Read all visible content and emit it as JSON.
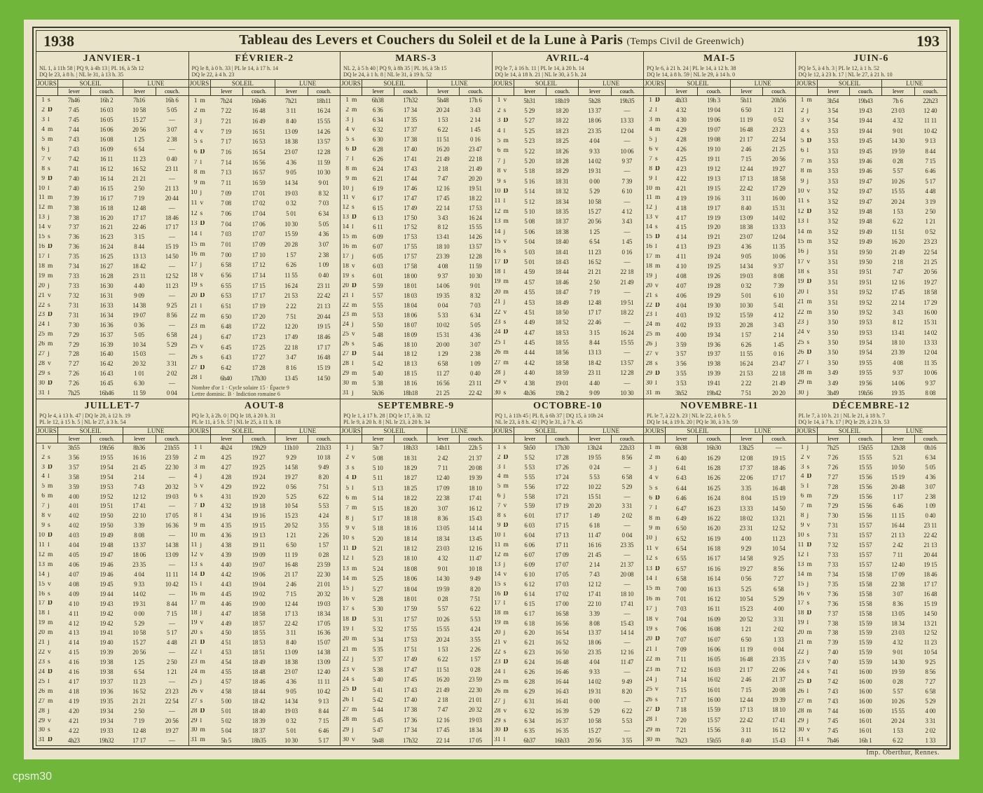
{
  "meta": {
    "year_left": "1938",
    "year_right": "193",
    "title_main": "Tableau des Levers et Couchers du Soleil et de la Lune à Paris",
    "title_sub": "(Temps Civil de Greenwich)",
    "imprint": "Imp. Oberthur, Rennes.",
    "watermark": "cpsm30",
    "headers": {
      "jours": "JOURS",
      "soleil": "SOLEIL",
      "lune": "LUNE",
      "lever": "lever",
      "couch": "couch."
    },
    "background_color": "#e9e3c9",
    "card_color": "#6fb63b",
    "border_color": "#3a3a2a",
    "text_color": "#2c2c1b"
  },
  "day_letters": [
    "l",
    "m",
    "m",
    "j",
    "v",
    "s",
    "D"
  ],
  "months": [
    {
      "name": "JANVIER-1",
      "days": 31,
      "first_weekday": 5,
      "notes": "NL 1, à 11h 58 | PQ 9, à 4h 13 | PL 16, à 5h 12\nDQ le 23, à 8 h. | NL le 31, à 13 h. 35",
      "soleil_lever_first": "7h46",
      "soleil_lever_last": "7h25",
      "soleil_couch_first": "16h 2",
      "soleil_couch_last": "16h46",
      "lune_lever_first": "7h16",
      "lune_couch_first": "16h 6",
      "footnote": ""
    },
    {
      "name": "FÉVRIER-2",
      "days": 28,
      "first_weekday": 1,
      "notes": "PQ le 8, à 0 h. 33 | PL le 14, à 17 h. 14\nDQ le 22, à 4 h. 23",
      "soleil_lever_first": "7h24",
      "soleil_lever_last": "6h40",
      "soleil_couch_first": "16h46",
      "soleil_couch_last": "17h30",
      "lune_lever_first": "7h21",
      "lune_couch_first": "18h11",
      "footnote": "Nombre d'or 1 · Cycle solaire 15 · Épacte 9\nLettre dominic. B · Indiction romaine 6"
    },
    {
      "name": "MARS-3",
      "days": 31,
      "first_weekday": 1,
      "notes": "NL 2, à 5 h 40 | PQ 9, à 8h 35 | PL 16, à 5h 15\nDQ le 24, à 1 h. 8 | NL le 31, à 19 h. 52",
      "soleil_lever_first": "6h38",
      "soleil_lever_last": "5h36",
      "soleil_couch_first": "17h32",
      "soleil_couch_last": "18h18",
      "lune_lever_first": "5h48",
      "lune_couch_first": "17h 6",
      "footnote": ""
    },
    {
      "name": "AVRIL-4",
      "days": 30,
      "first_weekday": 4,
      "notes": "PQ le 7, à 16 h. 11 | PL le 14, à 20 h. 14\nDQ le 14, à 18 h. 21 | NL le 30, à 5 h. 24",
      "soleil_lever_first": "5h31",
      "soleil_lever_last": "4h36",
      "soleil_couch_first": "18h19",
      "soleil_couch_last": "19h 2",
      "lune_lever_first": "5h28",
      "lune_couch_first": "19h35",
      "footnote": ""
    },
    {
      "name": "MAI-5",
      "days": 31,
      "first_weekday": 6,
      "notes": "PQ le 6, à 21 h. 24 | PL le 14, à 12 h. 38\nDQ le 14, à 8 h. 59 | NL le 29, à 14 h. 0",
      "soleil_lever_first": "4h33",
      "soleil_lever_last": "3h52",
      "soleil_couch_first": "19h 3",
      "soleil_couch_last": "19h42",
      "lune_lever_first": "5h11",
      "lune_couch_first": "20h56",
      "footnote": ""
    },
    {
      "name": "JUIN-6",
      "days": 30,
      "first_weekday": 2,
      "notes": "PQ le 5, à 4 h. 3 | PL le 12, à 1 h. 52\nDQ le 12, à 23 h. 17 | NL le 27, à 21 h. 10",
      "soleil_lever_first": "3h54",
      "soleil_lever_last": "3h49",
      "soleil_couch_first": "19h43",
      "soleil_couch_last": "19h56",
      "lune_lever_first": "7h 6",
      "lune_couch_first": "22h23",
      "footnote": ""
    },
    {
      "name": "JUILLET-7",
      "days": 31,
      "first_weekday": 4,
      "notes": "PQ le 4, à 13 h. 47 | DQ le 20, à 12 h. 19\nPL le 12, à 15 h. 5 | NL le 27, à 3 h. 54",
      "soleil_lever_first": "3h55",
      "soleil_lever_last": "4h23",
      "soleil_couch_first": "19h56",
      "soleil_couch_last": "19h32",
      "lune_lever_first": "8h36",
      "lune_couch_first": "21h55",
      "footnote": ""
    },
    {
      "name": "AOUT-8",
      "days": 31,
      "first_weekday": 0,
      "notes": "PQ le 3, à 2h. 0 | DQ le 18, à 20 h. 31\nPL le 11, à 5 h. 57 | NL le 25, à 11 h. 18",
      "soleil_lever_first": "4h24",
      "soleil_lever_last": "5h 5",
      "soleil_couch_first": "19h29",
      "soleil_couch_last": "18h35",
      "lune_lever_first": "11h10",
      "lune_couch_first": "21h33",
      "footnote": ""
    },
    {
      "name": "SEPTEMBRE-9",
      "days": 30,
      "first_weekday": 3,
      "notes": "PQ le 1, à 17 h. 28 | DQ le 17, à 3h. 12\nPL le 9, à 20 h. 8 | NL le 23, à 20 h. 34",
      "soleil_lever_first": "5h 7",
      "soleil_lever_last": "5h48",
      "soleil_couch_first": "18h33",
      "soleil_couch_last": "17h32",
      "lune_lever_first": "14h11",
      "lune_couch_first": "22h 5",
      "footnote": ""
    },
    {
      "name": "OCTOBRE-10",
      "days": 31,
      "first_weekday": 5,
      "notes": "PQ 1, à 11h 45 | PL 8, à 6h 37 | DQ 15, à 10h 24\nNL le 23, à 8 h. 42 | PQ le 31, à 7 h. 45",
      "soleil_lever_first": "5h50",
      "soleil_lever_last": "6h37",
      "soleil_couch_first": "17h30",
      "soleil_couch_last": "16h33",
      "lune_lever_first": "13h24",
      "lune_couch_first": "22h33",
      "footnote": ""
    },
    {
      "name": "NOVEMBRE-11",
      "days": 30,
      "first_weekday": 1,
      "notes": "PL le 7, à 22 h. 23 | NL le 22, à 0 h. 5\nDQ le 14, à 19 h. 20 | PQ le 30, à 3 h. 59",
      "soleil_lever_first": "6h38",
      "soleil_lever_last": "7h23",
      "soleil_couch_first": "16h30",
      "soleil_couch_last": "15h55",
      "lune_lever_first": "13h25",
      "lune_couch_first": "—",
      "footnote": ""
    },
    {
      "name": "DÉCEMBRE-12",
      "days": 31,
      "first_weekday": 3,
      "notes": "PL le 7, à 10 h. 21 | NL le 21, à 18 h. 7\nDQ le 14, à 7 h. 17 | PQ le 29, à 23 h. 53",
      "soleil_lever_first": "7h25",
      "soleil_lever_last": "7h46",
      "soleil_couch_first": "15h55",
      "soleil_couch_last": "16h 1",
      "lune_lever_first": "12h38",
      "lune_couch_first": "0h16",
      "footnote": ""
    }
  ]
}
